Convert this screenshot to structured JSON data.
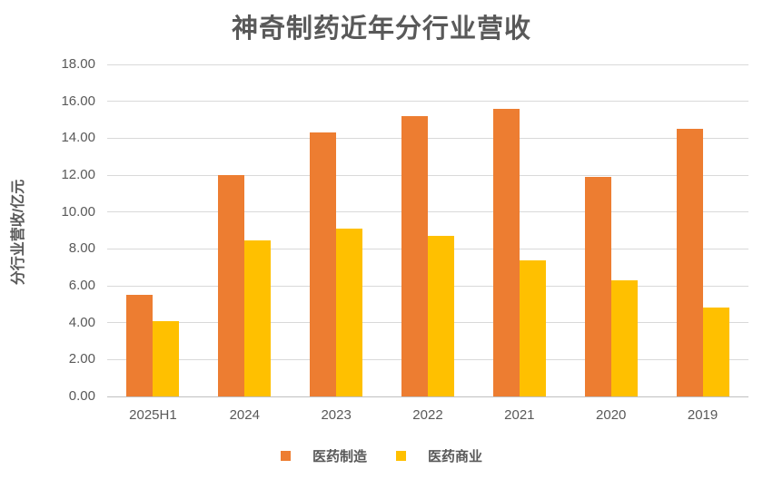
{
  "chart_data": {
    "type": "bar",
    "title": "神奇制药近年分行业营收",
    "ylabel": "分行业营收/亿元",
    "xlabel": "",
    "categories": [
      "2025H1",
      "2024",
      "2023",
      "2022",
      "2021",
      "2020",
      "2019"
    ],
    "series": [
      {
        "name": "医药制造",
        "color": "#ED7D31",
        "values": [
          5.5,
          12.0,
          14.3,
          15.2,
          15.6,
          11.9,
          14.5
        ]
      },
      {
        "name": "医药商业",
        "color": "#FFC000",
        "values": [
          4.1,
          8.45,
          9.1,
          8.7,
          7.4,
          6.3,
          4.8
        ]
      }
    ],
    "ylim": [
      0,
      18
    ],
    "ytick_step": 2,
    "ytick_labels": [
      "0.00",
      "2.00",
      "4.00",
      "6.00",
      "8.00",
      "10.00",
      "12.00",
      "14.00",
      "16.00",
      "18.00"
    ],
    "grid": true,
    "legend_position": "bottom"
  },
  "colors": {
    "series_manufacturing": "#ED7D31",
    "series_commerce": "#FFC000",
    "gridline": "#D9D9D9",
    "axis_line": "#BFBFBF",
    "text": "#595959"
  }
}
